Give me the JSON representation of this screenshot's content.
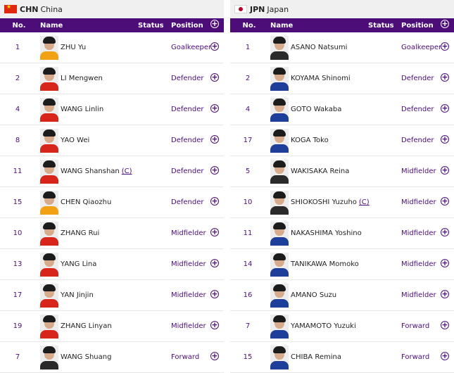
{
  "teams": [
    {
      "code": "CHN",
      "name": "China",
      "flag_icon": "china-flag-icon",
      "columns": {
        "no": "No.",
        "name": "Name",
        "status": "Status",
        "position": "Position"
      },
      "players": [
        {
          "no": "1",
          "name": "ZHU Yu",
          "captain": "",
          "position": "Goalkeeper",
          "kit": "chn-gk"
        },
        {
          "no": "2",
          "name": "LI Mengwen",
          "captain": "",
          "position": "Defender",
          "kit": "chn"
        },
        {
          "no": "4",
          "name": "WANG Linlin",
          "captain": "",
          "position": "Defender",
          "kit": "chn"
        },
        {
          "no": "8",
          "name": "YAO Wei",
          "captain": "",
          "position": "Defender",
          "kit": "chn"
        },
        {
          "no": "11",
          "name": "WANG Shanshan",
          "captain": "(C)",
          "position": "Defender",
          "kit": "chn"
        },
        {
          "no": "15",
          "name": "CHEN Qiaozhu",
          "captain": "",
          "position": "Defender",
          "kit": "chn-gk"
        },
        {
          "no": "10",
          "name": "ZHANG Rui",
          "captain": "",
          "position": "Midfielder",
          "kit": "chn"
        },
        {
          "no": "13",
          "name": "YANG Lina",
          "captain": "",
          "position": "Midfielder",
          "kit": "chn"
        },
        {
          "no": "17",
          "name": "YAN Jinjin",
          "captain": "",
          "position": "Midfielder",
          "kit": "chn"
        },
        {
          "no": "19",
          "name": "ZHANG Linyan",
          "captain": "",
          "position": "Midfielder",
          "kit": "chn"
        },
        {
          "no": "7",
          "name": "WANG Shuang",
          "captain": "",
          "position": "Forward",
          "kit": "jpn-dark"
        }
      ]
    },
    {
      "code": "JPN",
      "name": "Japan",
      "flag_icon": "japan-flag-icon",
      "columns": {
        "no": "No.",
        "name": "Name",
        "status": "Status",
        "position": "Position"
      },
      "players": [
        {
          "no": "1",
          "name": "ASANO Natsumi",
          "captain": "",
          "position": "Goalkeeper",
          "kit": "jpn-dark"
        },
        {
          "no": "2",
          "name": "KOYAMA Shinomi",
          "captain": "",
          "position": "Defender",
          "kit": "jpn"
        },
        {
          "no": "4",
          "name": "GOTO Wakaba",
          "captain": "",
          "position": "Defender",
          "kit": "jpn"
        },
        {
          "no": "17",
          "name": "KOGA Toko",
          "captain": "",
          "position": "Defender",
          "kit": "jpn"
        },
        {
          "no": "5",
          "name": "WAKISAKA Reina",
          "captain": "",
          "position": "Midfielder",
          "kit": "jpn-dark"
        },
        {
          "no": "10",
          "name": "SHIOKOSHI Yuzuho",
          "captain": "(C)",
          "position": "Midfielder",
          "kit": "jpn-dark"
        },
        {
          "no": "11",
          "name": "NAKASHIMA Yoshino",
          "captain": "",
          "position": "Midfielder",
          "kit": "jpn"
        },
        {
          "no": "14",
          "name": "TANIKAWA Momoko",
          "captain": "",
          "position": "Midfielder",
          "kit": "jpn"
        },
        {
          "no": "16",
          "name": "AMANO Suzu",
          "captain": "",
          "position": "Midfielder",
          "kit": "jpn"
        },
        {
          "no": "7",
          "name": "YAMAMOTO Yuzuki",
          "captain": "",
          "position": "Forward",
          "kit": "jpn"
        },
        {
          "no": "15",
          "name": "CHIBA Remina",
          "captain": "",
          "position": "Forward",
          "kit": "jpn"
        }
      ]
    }
  ],
  "colors": {
    "header_bg": "#4c0d79",
    "accent": "#4c0d79",
    "team_bar_bg": "#f0f0f0"
  }
}
